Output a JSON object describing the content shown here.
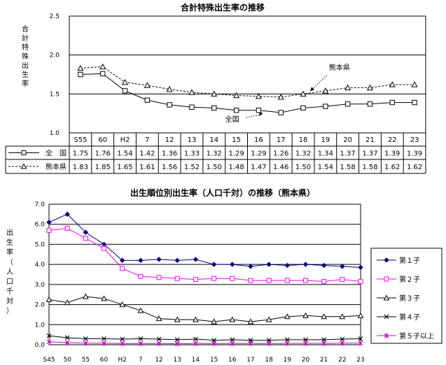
{
  "chart_data": [
    {
      "type": "line",
      "title": "合計特殊出生率の推移",
      "ylabel": "合計特殊出生率",
      "ylim": [
        1.0,
        2.5
      ],
      "yticks": [
        "1.0",
        "1.5",
        "2.0",
        "2.5"
      ],
      "grid": true,
      "categories": [
        "S55",
        "60",
        "H2",
        "7",
        "12",
        "13",
        "14",
        "15",
        "16",
        "17",
        "18",
        "19",
        "20",
        "21",
        "22",
        "23"
      ],
      "series": [
        {
          "name": "全　国",
          "color": "#000000",
          "marker": "square",
          "line": "solid",
          "annotation": "全国",
          "values": [
            1.75,
            1.76,
            1.54,
            1.42,
            1.36,
            1.33,
            1.32,
            1.29,
            1.29,
            1.26,
            1.32,
            1.34,
            1.37,
            1.37,
            1.39,
            1.39
          ],
          "labels": [
            "1.75",
            "1.76",
            "1.54",
            "1.42",
            "1.36",
            "1.33",
            "1.32",
            "1.29",
            "1.29",
            "1.26",
            "1.32",
            "1.34",
            "1.37",
            "1.37",
            "1.39",
            "1.39"
          ]
        },
        {
          "name": "熊本県",
          "color": "#000000",
          "marker": "triangle",
          "line": "dashed",
          "annotation": "熊本県",
          "values": [
            1.83,
            1.85,
            1.65,
            1.61,
            1.56,
            1.52,
            1.5,
            1.48,
            1.47,
            1.46,
            1.5,
            1.54,
            1.58,
            1.58,
            1.62,
            1.62
          ],
          "labels": [
            "1.83",
            "1.85",
            "1.65",
            "1.61",
            "1.56",
            "1.52",
            "1.50",
            "1.48",
            "1.47",
            "1.46",
            "1.50",
            "1.54",
            "1.58",
            "1.58",
            "1.62",
            "1.62"
          ]
        }
      ]
    },
    {
      "type": "line",
      "title": "出生順位別出生率（人口千対）の推移（熊本県）",
      "ylabel": "出生率（人口千対）",
      "ylim": [
        0.0,
        7.0
      ],
      "yticks": [
        "0.0",
        "1.0",
        "2.0",
        "3.0",
        "4.0",
        "5.0",
        "6.0",
        "7.0"
      ],
      "grid": true,
      "legend_position": "right",
      "categories": [
        "S45",
        "50",
        "55",
        "60",
        "H2",
        "7",
        "12",
        "13",
        "14",
        "15",
        "16",
        "17",
        "18",
        "19",
        "20",
        "21",
        "22",
        "23"
      ],
      "series": [
        {
          "name": "第１子",
          "color": "#000080",
          "marker": "diamond",
          "values": [
            6.1,
            6.5,
            5.6,
            5.0,
            4.2,
            4.2,
            4.25,
            4.2,
            4.25,
            4.0,
            4.0,
            3.9,
            4.0,
            3.95,
            4.0,
            3.95,
            3.9,
            3.85
          ]
        },
        {
          "name": "第２子",
          "color": "#ff00ff",
          "marker": "square",
          "values": [
            5.7,
            5.8,
            5.3,
            4.8,
            3.8,
            3.4,
            3.35,
            3.3,
            3.25,
            3.3,
            3.3,
            3.2,
            3.2,
            3.2,
            3.2,
            3.15,
            3.25,
            3.15
          ]
        },
        {
          "name": "第３子",
          "color": "#000000",
          "marker": "triangle",
          "values": [
            2.25,
            2.1,
            2.4,
            2.3,
            2.0,
            1.7,
            1.3,
            1.25,
            1.25,
            1.15,
            1.25,
            1.15,
            1.25,
            1.4,
            1.45,
            1.4,
            1.4,
            1.45
          ]
        },
        {
          "name": "第４子",
          "color": "#000000",
          "marker": "x",
          "values": [
            0.45,
            0.35,
            0.3,
            0.3,
            0.28,
            0.3,
            0.28,
            0.25,
            0.28,
            0.22,
            0.25,
            0.22,
            0.22,
            0.25,
            0.25,
            0.25,
            0.28,
            0.3
          ]
        },
        {
          "name": "第５子以上",
          "color": "#cc00cc",
          "marker": "star",
          "values": [
            0.15,
            0.1,
            0.08,
            0.07,
            0.06,
            0.06,
            0.06,
            0.05,
            0.06,
            0.06,
            0.06,
            0.07,
            0.06,
            0.07,
            0.07,
            0.07,
            0.08,
            0.08
          ]
        }
      ]
    }
  ]
}
